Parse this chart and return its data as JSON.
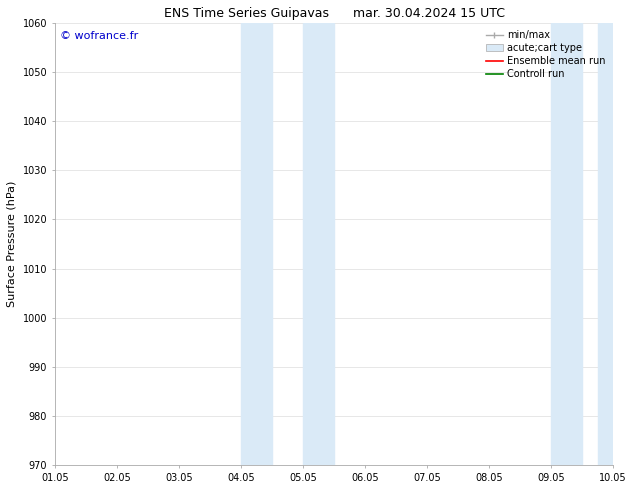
{
  "title": "ENS Time Series Guipavas      mar. 30.04.2024 15 UTC",
  "ylabel": "Surface Pressure (hPa)",
  "ylim": [
    970,
    1060
  ],
  "yticks": [
    970,
    980,
    990,
    1000,
    1010,
    1020,
    1030,
    1040,
    1050,
    1060
  ],
  "xtick_labels": [
    "01.05",
    "02.05",
    "03.05",
    "04.05",
    "05.05",
    "06.05",
    "07.05",
    "08.05",
    "09.05",
    "10.05"
  ],
  "shaded_regions": [
    {
      "xstart": 3.0,
      "xend": 3.5
    },
    {
      "xstart": 4.0,
      "xend": 4.5
    },
    {
      "xstart": 8.0,
      "xend": 8.5
    },
    {
      "xstart": 8.75,
      "xend": 9.0
    }
  ],
  "shade_color": "#daeaf7",
  "watermark": "© wofrance.fr",
  "watermark_color": "#0000cc",
  "legend_entries": [
    {
      "label": "min/max"
    },
    {
      "label": "acute;cart type"
    },
    {
      "label": "Ensemble mean run"
    },
    {
      "label": "Controll run"
    }
  ],
  "legend_colors": [
    "#aaaaaa",
    "#c8ddf0",
    "#ff0000",
    "#008000"
  ],
  "background_color": "#ffffff",
  "title_fontsize": 9,
  "tick_fontsize": 7,
  "ylabel_fontsize": 8,
  "legend_fontsize": 7
}
